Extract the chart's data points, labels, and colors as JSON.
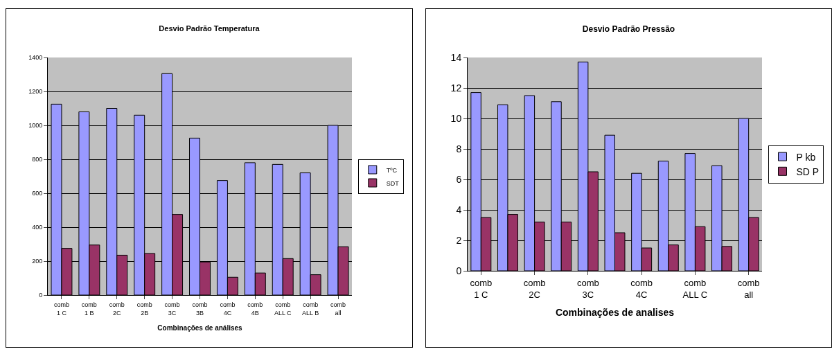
{
  "chart_data": [
    {
      "type": "bar",
      "title": "Desvio Padrão Temperatura",
      "xlabel": "Combinações de análises",
      "categories": [
        "comb 1 C",
        "comb 1 B",
        "comb 2C",
        "comb 2B",
        "comb 3C",
        "comb 3B",
        "comb 4C",
        "comb 4B",
        "comb ALL C",
        "comb ALL B",
        "comb all"
      ],
      "series": [
        {
          "name": "TºC",
          "color": "#9999ff",
          "values": [
            1125,
            1080,
            1100,
            1060,
            1305,
            925,
            675,
            780,
            770,
            720,
            1000
          ]
        },
        {
          "name": "SDT",
          "color": "#993366",
          "values": [
            275,
            295,
            235,
            245,
            475,
            195,
            105,
            130,
            215,
            120,
            285
          ]
        }
      ],
      "ylim": [
        0,
        1400
      ],
      "yticks": [
        0,
        200,
        400,
        600,
        800,
        1000,
        1200,
        1400
      ],
      "grid": "y",
      "legend": "right"
    },
    {
      "type": "bar",
      "title": "Desvio Padrão Pressão",
      "xlabel": "Combinações de analises",
      "categories": [
        "comb 1 C",
        null,
        "comb 2C",
        null,
        "comb 3C",
        null,
        "comb 4C",
        null,
        "comb ALL C",
        null,
        "comb all"
      ],
      "series": [
        {
          "name": "P kb",
          "color": "#9999ff",
          "values": [
            11.7,
            10.9,
            11.5,
            11.1,
            13.7,
            8.9,
            6.4,
            7.2,
            7.7,
            6.9,
            10.0
          ]
        },
        {
          "name": "SD P",
          "color": "#993366",
          "values": [
            3.5,
            3.7,
            3.2,
            3.2,
            6.5,
            2.5,
            1.5,
            1.7,
            2.9,
            1.6,
            3.5
          ]
        }
      ],
      "ylim": [
        0,
        14
      ],
      "yticks": [
        0,
        2,
        4,
        6,
        8,
        10,
        12,
        14
      ],
      "grid": "y",
      "legend": "right"
    }
  ]
}
